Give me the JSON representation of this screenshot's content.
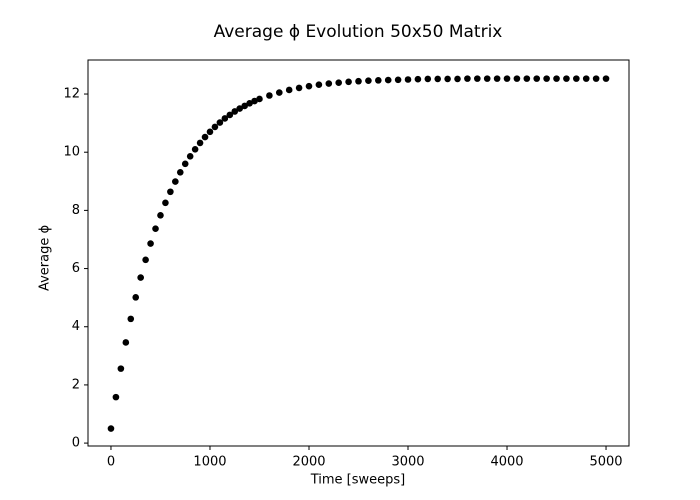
{
  "chart_data": {
    "type": "scatter",
    "title": "Average ϕ Evolution 50x50 Matrix",
    "x_label": "Time [sweeps]",
    "y_label": "Average ϕ",
    "color": "#000000",
    "x": [
      0,
      50,
      100,
      150,
      200,
      250,
      300,
      350,
      400,
      450,
      500,
      550,
      600,
      650,
      700,
      750,
      800,
      850,
      900,
      950,
      1000,
      1050,
      1100,
      1150,
      1200,
      1250,
      1300,
      1350,
      1400,
      1450,
      1500,
      1600,
      1700,
      1800,
      1900,
      2000,
      2100,
      2200,
      2300,
      2400,
      2500,
      2600,
      2700,
      2800,
      2900,
      3000,
      3100,
      3200,
      3300,
      3400,
      3500,
      3600,
      3700,
      3800,
      3900,
      4000,
      4100,
      4200,
      4300,
      4400,
      4500,
      4600,
      4700,
      4800,
      4900,
      5000
    ],
    "values": [
      0.5,
      1.58,
      2.56,
      3.46,
      4.27,
      5.01,
      5.69,
      6.3,
      6.86,
      7.37,
      7.83,
      8.26,
      8.64,
      8.99,
      9.31,
      9.6,
      9.86,
      10.1,
      10.32,
      10.52,
      10.7,
      10.87,
      11.02,
      11.16,
      11.28,
      11.4,
      11.5,
      11.59,
      11.68,
      11.76,
      11.83,
      11.95,
      12.05,
      12.14,
      12.21,
      12.27,
      12.32,
      12.36,
      12.39,
      12.42,
      12.44,
      12.46,
      12.47,
      12.48,
      12.49,
      12.5,
      12.51,
      12.52,
      12.52,
      12.52,
      12.52,
      12.53,
      12.53,
      12.53,
      12.53,
      12.53,
      12.53,
      12.53,
      12.53,
      12.53,
      12.53,
      12.53,
      12.53,
      12.53,
      12.53,
      12.53
    ],
    "xlim": [
      -232,
      5232
    ],
    "ylim": [
      -0.1,
      13.17
    ],
    "xticks": [
      0,
      1000,
      2000,
      3000,
      4000,
      5000
    ],
    "yticks": [
      0,
      2,
      4,
      6,
      8,
      10,
      12
    ]
  }
}
